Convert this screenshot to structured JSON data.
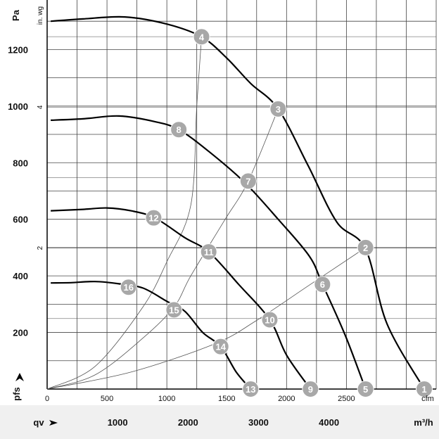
{
  "chart_data": {
    "type": "line",
    "title": "",
    "primary_y": {
      "unit": "Pa",
      "ylim": [
        0,
        1375
      ],
      "ticks": [
        "200",
        "400",
        "600",
        "800",
        "1000",
        "1200"
      ]
    },
    "secondary_y": {
      "unit": "in. wg",
      "ticks": [
        "2",
        "4"
      ]
    },
    "x_primary": {
      "unit": "cfm",
      "xlim": [
        0,
        3250
      ],
      "ticks": [
        "0",
        "500",
        "1000",
        "1500",
        "2000",
        "2500"
      ]
    },
    "x_secondary": {
      "label": "qv",
      "unit": "m³/h",
      "ticks": [
        "1000",
        "2000",
        "3000",
        "4000"
      ]
    },
    "ylabel": "pfs",
    "grid": true,
    "fan_curves": [
      {
        "points": [
          [
            30,
            1300
          ],
          [
            300,
            1308
          ],
          [
            650,
            1315
          ],
          [
            1000,
            1290
          ],
          [
            1290,
            1245
          ],
          [
            1500,
            1170
          ],
          [
            1700,
            1080
          ],
          [
            1930,
            990
          ],
          [
            2180,
            790
          ],
          [
            2420,
            590
          ],
          [
            2660,
            495
          ],
          [
            2840,
            230
          ],
          [
            3150,
            0
          ]
        ]
      },
      {
        "points": [
          [
            30,
            950
          ],
          [
            300,
            955
          ],
          [
            600,
            965
          ],
          [
            900,
            945
          ],
          [
            1100,
            917
          ],
          [
            1350,
            840
          ],
          [
            1650,
            730
          ],
          [
            1930,
            600
          ],
          [
            2190,
            470
          ],
          [
            2300,
            370
          ],
          [
            2490,
            190
          ],
          [
            2660,
            0
          ]
        ]
      },
      {
        "points": [
          [
            30,
            630
          ],
          [
            300,
            635
          ],
          [
            500,
            640
          ],
          [
            700,
            630
          ],
          [
            900,
            605
          ],
          [
            1150,
            535
          ],
          [
            1350,
            485
          ],
          [
            1600,
            370
          ],
          [
            1860,
            245
          ],
          [
            2000,
            120
          ],
          [
            2200,
            0
          ]
        ]
      },
      {
        "points": [
          [
            30,
            375
          ],
          [
            200,
            376
          ],
          [
            400,
            380
          ],
          [
            600,
            372
          ],
          [
            800,
            357
          ],
          [
            1000,
            310
          ],
          [
            1150,
            275
          ],
          [
            1300,
            200
          ],
          [
            1450,
            150
          ],
          [
            1580,
            60
          ],
          [
            1700,
            0
          ]
        ]
      }
    ],
    "system_curves": [
      {
        "points": [
          [
            0,
            0
          ],
          [
            400,
            80
          ],
          [
            800,
            290
          ],
          [
            1000,
            450
          ],
          [
            1200,
            650
          ],
          [
            1250,
            1000
          ],
          [
            1290,
            1245
          ]
        ]
      },
      {
        "points": [
          [
            0,
            0
          ],
          [
            400,
            50
          ],
          [
            800,
            180
          ],
          [
            1060,
            290
          ],
          [
            1200,
            400
          ],
          [
            1480,
            595
          ],
          [
            1680,
            735
          ],
          [
            1930,
            990
          ]
        ]
      },
      {
        "points": [
          [
            0,
            0
          ],
          [
            700,
            60
          ],
          [
            1400,
            160
          ],
          [
            1740,
            240
          ],
          [
            2200,
            370
          ],
          [
            2660,
            500
          ]
        ]
      }
    ],
    "operating_points": [
      {
        "label": "1",
        "x": 3150,
        "y": 0
      },
      {
        "label": "2",
        "x": 2660,
        "y": 500
      },
      {
        "label": "3",
        "x": 1930,
        "y": 990
      },
      {
        "label": "4",
        "x": 1290,
        "y": 1245
      },
      {
        "label": "5",
        "x": 2660,
        "y": 0
      },
      {
        "label": "6",
        "x": 2300,
        "y": 370
      },
      {
        "label": "7",
        "x": 1680,
        "y": 735
      },
      {
        "label": "8",
        "x": 1100,
        "y": 917
      },
      {
        "label": "9",
        "x": 2200,
        "y": 0
      },
      {
        "label": "10",
        "x": 1860,
        "y": 245
      },
      {
        "label": "11",
        "x": 1350,
        "y": 485
      },
      {
        "label": "12",
        "x": 890,
        "y": 605
      },
      {
        "label": "13",
        "x": 1700,
        "y": 0
      },
      {
        "label": "14",
        "x": 1450,
        "y": 150
      },
      {
        "label": "15",
        "x": 1060,
        "y": 280
      },
      {
        "label": "16",
        "x": 680,
        "y": 360
      }
    ],
    "colors": {
      "curve": "#000000",
      "system": "#555555",
      "marker": "#a8a8a8",
      "marker_text": "#ffffff",
      "band": "#f0f0f0"
    }
  }
}
